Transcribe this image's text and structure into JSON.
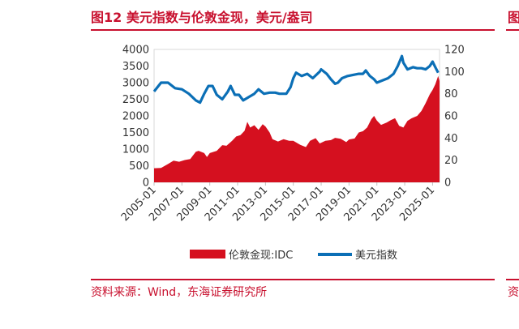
{
  "header": {
    "title": "图12  美元指数与伦敦金现，美元/盎司",
    "edge_glyph": "图"
  },
  "footer": {
    "source": "资料来源：Wind，东海证券研究所",
    "edge_glyph": "资"
  },
  "chart_data": {
    "type": "area+line",
    "title": "",
    "x_tick_labels": [
      "2005-01",
      "2007-01",
      "2009-01",
      "2011-01",
      "2013-01",
      "2015-01",
      "2017-01",
      "2019-01",
      "2021-01",
      "2023-01",
      "2025-01"
    ],
    "x_range": [
      2005.0,
      2025.5
    ],
    "y_left": {
      "range": [
        0,
        4000
      ],
      "ticks": [
        "0",
        "500",
        "1000",
        "1500",
        "2000",
        "2500",
        "3000",
        "3500",
        "4000"
      ]
    },
    "y_right": {
      "range": [
        0,
        120
      ],
      "ticks": [
        "0",
        "20",
        "40",
        "60",
        "80",
        "100",
        "120"
      ]
    },
    "legend_position": "bottom",
    "series": [
      {
        "name": "伦敦金现:IDC",
        "axis": "left",
        "style": "area",
        "color": "#d5101f",
        "x": [
          2005.0,
          2005.5,
          2006.0,
          2006.4,
          2006.8,
          2007.2,
          2007.6,
          2008.0,
          2008.2,
          2008.6,
          2008.8,
          2009.0,
          2009.5,
          2009.9,
          2010.2,
          2010.6,
          2010.9,
          2011.2,
          2011.5,
          2011.7,
          2011.9,
          2012.2,
          2012.5,
          2012.8,
          2013.0,
          2013.3,
          2013.5,
          2013.9,
          2014.3,
          2014.7,
          2015.0,
          2015.5,
          2015.9,
          2016.2,
          2016.6,
          2016.9,
          2017.3,
          2017.7,
          2018.0,
          2018.4,
          2018.8,
          2019.0,
          2019.4,
          2019.7,
          2020.0,
          2020.3,
          2020.6,
          2020.8,
          2021.0,
          2021.3,
          2021.7,
          2022.0,
          2022.3,
          2022.6,
          2022.9,
          2023.2,
          2023.5,
          2023.9,
          2024.2,
          2024.5,
          2024.8,
          2025.0,
          2025.2,
          2025.4,
          2025.5
        ],
        "y": [
          425,
          435,
          550,
          650,
          620,
          670,
          700,
          920,
          950,
          880,
          760,
          880,
          950,
          1120,
          1100,
          1250,
          1380,
          1420,
          1550,
          1820,
          1650,
          1720,
          1580,
          1750,
          1680,
          1500,
          1300,
          1230,
          1300,
          1250,
          1250,
          1130,
          1060,
          1250,
          1330,
          1170,
          1250,
          1270,
          1340,
          1310,
          1210,
          1290,
          1320,
          1500,
          1540,
          1650,
          1900,
          2000,
          1860,
          1730,
          1800,
          1870,
          1930,
          1700,
          1650,
          1850,
          1930,
          2000,
          2150,
          2380,
          2650,
          2780,
          2950,
          3200,
          3050
        ]
      },
      {
        "name": "美元指数",
        "axis": "right",
        "style": "line",
        "color": "#0b6fb6",
        "x": [
          2005.0,
          2005.5,
          2006.0,
          2006.5,
          2007.0,
          2007.5,
          2008.0,
          2008.3,
          2008.6,
          2008.9,
          2009.2,
          2009.5,
          2009.9,
          2010.3,
          2010.5,
          2010.8,
          2011.1,
          2011.4,
          2011.8,
          2012.2,
          2012.5,
          2012.9,
          2013.3,
          2013.7,
          2014.0,
          2014.5,
          2014.8,
          2015.0,
          2015.2,
          2015.6,
          2016.0,
          2016.4,
          2016.9,
          2017.0,
          2017.4,
          2017.7,
          2018.0,
          2018.2,
          2018.5,
          2018.9,
          2019.3,
          2019.7,
          2020.0,
          2020.2,
          2020.5,
          2020.8,
          2021.0,
          2021.4,
          2021.8,
          2022.2,
          2022.5,
          2022.8,
          2022.9,
          2023.2,
          2023.6,
          2023.9,
          2024.2,
          2024.5,
          2024.8,
          2025.0,
          2025.2,
          2025.4
        ],
        "y": [
          82,
          90,
          90,
          85,
          84,
          80,
          74,
          72,
          80,
          87,
          87,
          79,
          75,
          82,
          87,
          79,
          79,
          74,
          77,
          80,
          84,
          80,
          81,
          81,
          80,
          80,
          86,
          94,
          99,
          96,
          98,
          94,
          100,
          102,
          98,
          93,
          89,
          90,
          94,
          96,
          97,
          98,
          98,
          101,
          96,
          93,
          90,
          92,
          94,
          98,
          105,
          114,
          108,
          102,
          104,
          103,
          103,
          102,
          105,
          109,
          104,
          99
        ]
      }
    ]
  }
}
